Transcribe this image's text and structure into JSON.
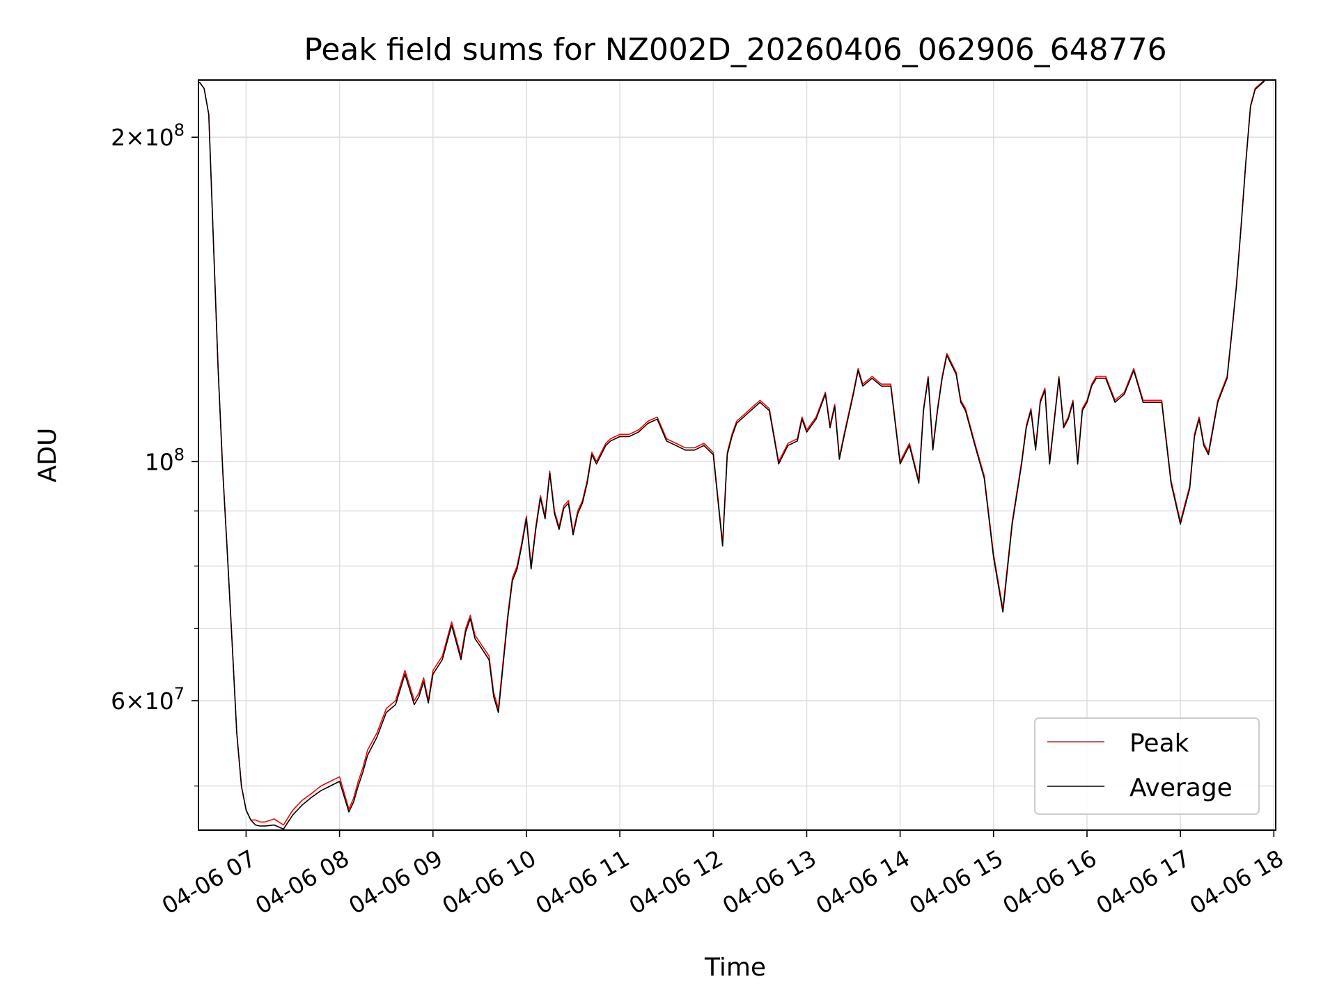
{
  "chart_data": {
    "type": "line",
    "title": "Peak field sums for NZ002D_20260406_062906_648776",
    "xlabel": "Time",
    "ylabel": "ADU",
    "x_range": [
      "04-06 06:29",
      "04-06 18:01"
    ],
    "yscale": "log",
    "ylim": [
      45500000,
      226000000
    ],
    "grid": true,
    "legend_position": "lower-right",
    "x_ticks": [
      "04-06 07",
      "04-06 08",
      "04-06 09",
      "04-06 10",
      "04-06 11",
      "04-06 12",
      "04-06 13",
      "04-06 14",
      "04-06 15",
      "04-06 16",
      "04-06 17",
      "04-06 18"
    ],
    "y_tick_labels": [
      {
        "value": 60000000,
        "mantissa": "6",
        "exp": "7"
      },
      {
        "value": 100000000,
        "mantissa": "",
        "exp": "8"
      },
      {
        "value": 200000000,
        "mantissa": "2",
        "exp": "8"
      }
    ],
    "y_minor_ticks": [
      50000000,
      70000000,
      80000000,
      90000000
    ],
    "x_hours": [
      6.5,
      6.55,
      6.6,
      6.65,
      6.7,
      6.75,
      6.8,
      6.85,
      6.9,
      6.95,
      7.0,
      7.05,
      7.1,
      7.15,
      7.2,
      7.3,
      7.4,
      7.5,
      7.6,
      7.7,
      7.8,
      7.9,
      8.0,
      8.1,
      8.15,
      8.2,
      8.25,
      8.3,
      8.4,
      8.5,
      8.6,
      8.7,
      8.8,
      8.85,
      8.9,
      8.95,
      9.0,
      9.1,
      9.2,
      9.3,
      9.35,
      9.4,
      9.45,
      9.5,
      9.6,
      9.65,
      9.7,
      9.8,
      9.85,
      9.9,
      9.95,
      10.0,
      10.05,
      10.1,
      10.15,
      10.2,
      10.25,
      10.3,
      10.35,
      10.4,
      10.45,
      10.5,
      10.55,
      10.6,
      10.65,
      10.7,
      10.75,
      10.8,
      10.85,
      10.9,
      11.0,
      11.1,
      11.2,
      11.3,
      11.4,
      11.5,
      11.6,
      11.7,
      11.8,
      11.9,
      12.0,
      12.1,
      12.15,
      12.2,
      12.25,
      12.3,
      12.4,
      12.5,
      12.6,
      12.7,
      12.8,
      12.9,
      12.95,
      13.0,
      13.1,
      13.2,
      13.25,
      13.3,
      13.35,
      13.4,
      13.5,
      13.55,
      13.6,
      13.7,
      13.8,
      13.9,
      14.0,
      14.1,
      14.2,
      14.25,
      14.3,
      14.35,
      14.4,
      14.45,
      14.5,
      14.6,
      14.65,
      14.7,
      14.8,
      14.9,
      15.0,
      15.1,
      15.2,
      15.3,
      15.35,
      15.4,
      15.45,
      15.5,
      15.55,
      15.6,
      15.7,
      15.75,
      15.8,
      15.85,
      15.9,
      15.95,
      16.0,
      16.05,
      16.1,
      16.2,
      16.3,
      16.4,
      16.5,
      16.6,
      16.7,
      16.8,
      16.9,
      17.0,
      17.1,
      17.15,
      17.2,
      17.25,
      17.3,
      17.4,
      17.5,
      17.55,
      17.6,
      17.65,
      17.7,
      17.75,
      17.8,
      17.85,
      17.9,
      17.95,
      18.0
    ],
    "series": [
      {
        "name": "Peak",
        "color": "#ff0000",
        "values": [
          225000000,
          222000000,
          210000000,
          160000000,
          122000000,
          98000000,
          82000000,
          68000000,
          56000000,
          50000000,
          47500000,
          46500000,
          46500000,
          46300000,
          46300000,
          46600000,
          46000000,
          47500000,
          48500000,
          49200000,
          50000000,
          50500000,
          51000000,
          47600000,
          48700000,
          50500000,
          52000000,
          54000000,
          56000000,
          59000000,
          60000000,
          64000000,
          60000000,
          61000000,
          63000000,
          60000000,
          64000000,
          66000000,
          71000000,
          66000000,
          70000000,
          72000000,
          69000000,
          68000000,
          66000000,
          61000000,
          59000000,
          72000000,
          78000000,
          80000000,
          84000000,
          89000000,
          80000000,
          87000000,
          93000000,
          89000000,
          98000000,
          90000000,
          87000000,
          91000000,
          92000000,
          86000000,
          90000000,
          92000000,
          96000000,
          102000000,
          100000000,
          102000000,
          104000000,
          105000000,
          106000000,
          106000000,
          107000000,
          109000000,
          110000000,
          105000000,
          104000000,
          103000000,
          103000000,
          104000000,
          102000000,
          84000000,
          102000000,
          106000000,
          109000000,
          110000000,
          112000000,
          114000000,
          112000000,
          100000000,
          104000000,
          105000000,
          110000000,
          107000000,
          110000000,
          116000000,
          108000000,
          113000000,
          101000000,
          106000000,
          116000000,
          122000000,
          118000000,
          120000000,
          118000000,
          118000000,
          100000000,
          104000000,
          96000000,
          112000000,
          120000000,
          103000000,
          112000000,
          120000000,
          126000000,
          121000000,
          114000000,
          112000000,
          104000000,
          97000000,
          82000000,
          73000000,
          88000000,
          100000000,
          108000000,
          112000000,
          103000000,
          114000000,
          117000000,
          100000000,
          120000000,
          108000000,
          110000000,
          114000000,
          100000000,
          112000000,
          114000000,
          118000000,
          120000000,
          120000000,
          114000000,
          116000000,
          122000000,
          114000000,
          114000000,
          114000000,
          96000000,
          88000000,
          95000000,
          106000000,
          110000000,
          104000000,
          102000000,
          114000000,
          120000000,
          132000000,
          146000000,
          166000000,
          190000000,
          214000000,
          222000000,
          224000000,
          226000000
        ]
      },
      {
        "name": "Average",
        "color": "#000000",
        "values": [
          225000000,
          222000000,
          210000000,
          160000000,
          122000000,
          98000000,
          82000000,
          68000000,
          56000000,
          50000000,
          47500000,
          46500000,
          46000000,
          45900000,
          45900000,
          46000000,
          45600000,
          47000000,
          48000000,
          48800000,
          49500000,
          50000000,
          50500000,
          47300000,
          48300000,
          50000000,
          51500000,
          53400000,
          55500000,
          58500000,
          59500000,
          63500000,
          59500000,
          60500000,
          62500000,
          59700000,
          63500000,
          65500000,
          70500000,
          65500000,
          69500000,
          71500000,
          68500000,
          67500000,
          65500000,
          60500000,
          58500000,
          71500000,
          77500000,
          79500000,
          83500000,
          88500000,
          79500000,
          86500000,
          92500000,
          88500000,
          97500000,
          89500000,
          86500000,
          90500000,
          91500000,
          85500000,
          89500000,
          91500000,
          95500000,
          101500000,
          99500000,
          101500000,
          103500000,
          104500000,
          105500000,
          105500000,
          106500000,
          108500000,
          109500000,
          104500000,
          103500000,
          102500000,
          102500000,
          103500000,
          101500000,
          83500000,
          101500000,
          105500000,
          108500000,
          109500000,
          111500000,
          113500000,
          111500000,
          99500000,
          103500000,
          104500000,
          109500000,
          106500000,
          109500000,
          115500000,
          107500000,
          112500000,
          100500000,
          105500000,
          115500000,
          121500000,
          117500000,
          119500000,
          117500000,
          117500000,
          99500000,
          103500000,
          95500000,
          111500000,
          119500000,
          102500000,
          111500000,
          119500000,
          125500000,
          120500000,
          113500000,
          111500000,
          103500000,
          96500000,
          81500000,
          72500000,
          87500000,
          99500000,
          107500000,
          111500000,
          102500000,
          113500000,
          116500000,
          99500000,
          119500000,
          107500000,
          109500000,
          113500000,
          99500000,
          111500000,
          113500000,
          117500000,
          119500000,
          119500000,
          113500000,
          115500000,
          121500000,
          113500000,
          113500000,
          113500000,
          95500000,
          87500000,
          94500000,
          105500000,
          109500000,
          103500000,
          101500000,
          113500000,
          119500000,
          131500000,
          145500000,
          165500000,
          189500000,
          213500000,
          221500000,
          223500000,
          225500000
        ]
      }
    ]
  }
}
